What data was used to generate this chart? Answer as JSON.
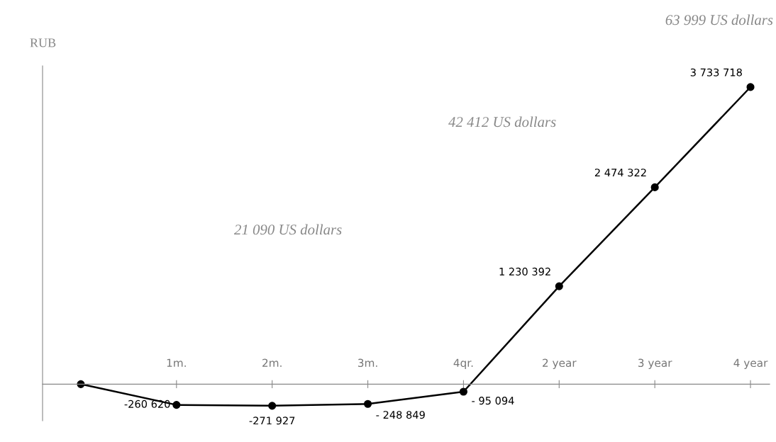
{
  "chart_data": {
    "type": "line",
    "ylabel": "RUB",
    "categories": [
      null,
      "1m.",
      "2m.",
      "3m.",
      "4qr.",
      "2 year",
      "3 year",
      "4 year"
    ],
    "series": [
      {
        "color": "#000000",
        "values": [
          0,
          -260620,
          -271927,
          -248849,
          -95094,
          1230392,
          2474322,
          3733718
        ],
        "value_labels": [
          null,
          "-260 620",
          "-271 927",
          "- 248 849",
          "- 95 094",
          "1 230 392",
          "2 474 322",
          "3 733 718"
        ]
      }
    ],
    "ylim": [
      -460000,
      4000000
    ],
    "marker": "circle",
    "grid": false,
    "legend": false,
    "annotations": [
      "21 090 US dollars",
      "42 412 US dollars",
      "63 999 US dollars"
    ]
  }
}
